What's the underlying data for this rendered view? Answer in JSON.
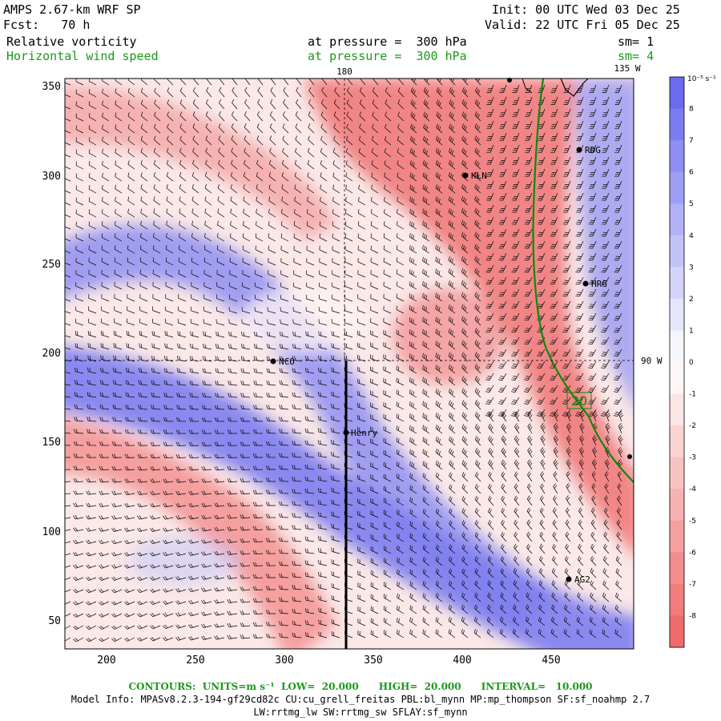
{
  "header": {
    "model": "AMPS 2.67-km WRF SP",
    "forecast": "Fcst:   70 h",
    "init": "Init: 00 UTC Wed 03 Dec 25",
    "valid": "Valid: 22 UTC Fri 05 Dec 25",
    "field1": "Relative vorticity",
    "field1_level": "at pressure =  300 hPa",
    "field1_sm": "sm= 1",
    "field2": "Horizontal wind speed",
    "field2_level": "at pressure =  300 hPa",
    "field2_sm": "sm= 4"
  },
  "map": {
    "x_ticks": [
      "200",
      "250",
      "300",
      "350",
      "400",
      "450"
    ],
    "y_ticks": [
      "50",
      "100",
      "150",
      "200",
      "250",
      "300",
      "350"
    ],
    "lon_label_top_180": "180",
    "lon_label_top_135w": "135 W",
    "lat_label_right_90w": "90 W",
    "stations": [
      {
        "name": "KLN",
        "x": 401,
        "y": 300
      },
      {
        "name": "RDG",
        "x": 465,
        "y": 314
      },
      {
        "name": "HRG",
        "x": 469,
        "y": 239
      },
      {
        "name": "NCO",
        "x": 293,
        "y": 196
      },
      {
        "name": "Henry",
        "x": 334,
        "y": 155
      },
      {
        "name": "AG2",
        "x": 459,
        "y": 72
      }
    ],
    "contour_label": "20",
    "colors": {
      "positive": "#6b6bf0",
      "negative": "#f06b6b",
      "contour": "#0a8a0a"
    }
  },
  "colorbar": {
    "unit": "10⁻⁵ s⁻¹",
    "labels": [
      "8",
      "7",
      "6",
      "5",
      "4",
      "3",
      "2",
      "1",
      "0",
      "-1",
      "-2",
      "-3",
      "-4",
      "-5",
      "-6",
      "-7",
      "-8"
    ]
  },
  "footer": {
    "contours": "CONTOURS:  UNITS=m s⁻¹  LOW=  20.000      HIGH=  20.000      INTERVAL=   10.000",
    "model_info": "Model Info: MPASv8.2.3-194-gf29cd82c CU:cu_grell_freitas PBL:bl_mynn MP:mp_thompson SF:sf_noahmp 2.7",
    "physics": "LW:rrtmg_lw SW:rrtmg_sw SFLAY:sf_mynn"
  }
}
